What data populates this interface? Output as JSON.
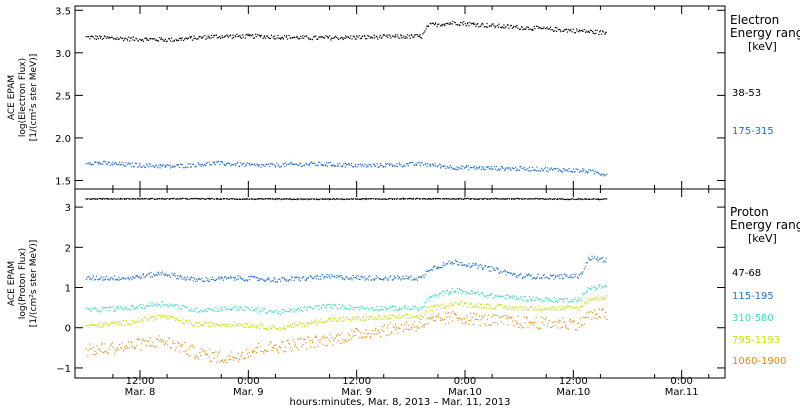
{
  "chart_data": [
    {
      "type": "scatter",
      "panel": "electron",
      "ylabel_lines": [
        "ACE EPAM",
        "log(Electron Flux)",
        "[1/(cm²s ster MeV)]"
      ],
      "ylim": [
        1.4,
        3.55
      ],
      "y_ticks": [
        1.5,
        2.0,
        2.5,
        3.0,
        3.5
      ],
      "y_tick_labels": [
        "1.5",
        "2.0",
        "2.5",
        "3.0",
        "3.5"
      ],
      "legend_title_lines": [
        "Electron",
        "Energy ranges",
        "[keV]"
      ],
      "series": [
        {
          "name": "38-53",
          "color": "#000000",
          "x": [
            0.0,
            0.2,
            0.4,
            0.6,
            0.8,
            1.05,
            1.3,
            1.55,
            1.58,
            1.7,
            1.9,
            2.1,
            2.3,
            2.4
          ],
          "values": [
            3.19,
            3.17,
            3.16,
            3.2,
            3.2,
            3.18,
            3.19,
            3.2,
            3.33,
            3.36,
            3.32,
            3.29,
            3.26,
            3.24
          ]
        },
        {
          "name": "175-315",
          "color": "#1e6fd0",
          "x": [
            0.0,
            0.2,
            0.4,
            0.6,
            0.8,
            1.05,
            1.3,
            1.55,
            1.7,
            1.9,
            2.1,
            2.3,
            2.4
          ],
          "values": [
            1.72,
            1.69,
            1.67,
            1.71,
            1.68,
            1.7,
            1.68,
            1.7,
            1.66,
            1.65,
            1.64,
            1.62,
            1.58
          ]
        }
      ]
    },
    {
      "type": "scatter",
      "panel": "proton",
      "ylabel_lines": [
        "ACE EPAM",
        "log(Proton Flux)",
        "[1/(cm²s ster MeV)]"
      ],
      "ylim": [
        -1.25,
        3.45
      ],
      "y_ticks": [
        -1,
        0,
        1,
        2,
        3
      ],
      "y_tick_labels": [
        "−1",
        "0",
        "1",
        "2",
        "3"
      ],
      "legend_title_lines": [
        "Proton",
        "Energy ranges",
        "[keV]"
      ],
      "series": [
        {
          "name": "47-68",
          "color": "#000000",
          "x": [
            0.0,
            0.5,
            1.0,
            1.5,
            2.0,
            2.4
          ],
          "values": [
            3.22,
            3.22,
            3.21,
            3.22,
            3.22,
            3.21
          ]
        },
        {
          "name": "115-195",
          "color": "#1e6fd0",
          "x": [
            0.0,
            0.2,
            0.35,
            0.5,
            0.7,
            0.9,
            1.1,
            1.3,
            1.55,
            1.58,
            1.7,
            1.85,
            2.0,
            2.15,
            2.28,
            2.32,
            2.4
          ],
          "values": [
            1.25,
            1.25,
            1.37,
            1.2,
            1.25,
            1.2,
            1.28,
            1.25,
            1.25,
            1.48,
            1.65,
            1.5,
            1.3,
            1.28,
            1.3,
            1.75,
            1.7
          ]
        },
        {
          "name": "310-580",
          "color": "#40d9c8",
          "x": [
            0.0,
            0.2,
            0.35,
            0.5,
            0.7,
            0.9,
            1.1,
            1.3,
            1.55,
            1.58,
            1.7,
            1.85,
            2.0,
            2.15,
            2.28,
            2.32,
            2.4
          ],
          "values": [
            0.45,
            0.5,
            0.62,
            0.45,
            0.5,
            0.4,
            0.55,
            0.5,
            0.5,
            0.75,
            0.95,
            0.82,
            0.75,
            0.7,
            0.72,
            1.0,
            1.05
          ]
        },
        {
          "name": "795-1193",
          "color": "#c8de10",
          "x": [
            0.0,
            0.2,
            0.35,
            0.5,
            0.7,
            0.9,
            1.1,
            1.3,
            1.55,
            1.58,
            1.7,
            1.85,
            2.0,
            2.15,
            2.28,
            2.32,
            2.4
          ],
          "values": [
            0.05,
            0.15,
            0.3,
            0.1,
            0.1,
            0.0,
            0.2,
            0.25,
            0.3,
            0.48,
            0.62,
            0.55,
            0.5,
            0.5,
            0.5,
            0.72,
            0.78
          ]
        },
        {
          "name": "1060-1900",
          "color": "#e58a10",
          "x": [
            0.0,
            0.2,
            0.35,
            0.5,
            0.65,
            0.8,
            0.9,
            1.1,
            1.3,
            1.55,
            1.58,
            1.7,
            1.85,
            2.0,
            2.15,
            2.28,
            2.32,
            2.4
          ],
          "values": [
            -0.55,
            -0.45,
            -0.3,
            -0.6,
            -0.75,
            -0.5,
            -0.45,
            -0.3,
            -0.1,
            0.1,
            0.15,
            0.28,
            0.2,
            0.15,
            0.12,
            0.12,
            0.32,
            0.35
          ]
        }
      ]
    }
  ],
  "x_axis": {
    "xlim": [
      -0.05,
      2.95
    ],
    "xlabel": "hours:minutes, Mar.  8, 2013 – Mar. 11, 2013",
    "ticks": [
      {
        "x": 0.25,
        "time": "12:00",
        "date": "Mar.  8"
      },
      {
        "x": 0.75,
        "time": "0:00",
        "date": "Mar.  9"
      },
      {
        "x": 1.25,
        "time": "12:00",
        "date": "Mar.  9"
      },
      {
        "x": 1.75,
        "time": "0:00",
        "date": "Mar.10"
      },
      {
        "x": 2.25,
        "time": "12:00",
        "date": "Mar.10"
      },
      {
        "x": 2.75,
        "time": "0:00",
        "date": "Mar.11"
      }
    ]
  }
}
